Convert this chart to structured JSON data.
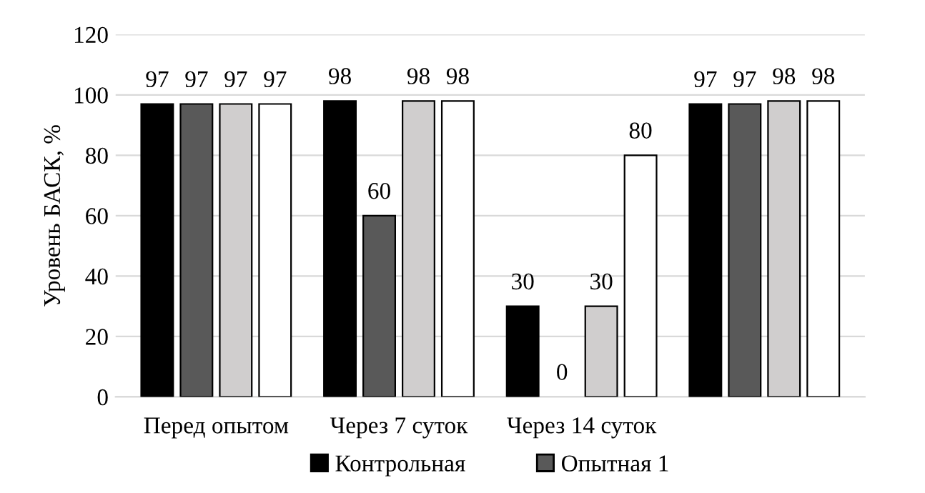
{
  "chart_data": {
    "type": "bar",
    "ylabel": "Уровень БАСК, %",
    "categories": [
      "Перед опытом",
      "Через 7 суток",
      "Через 14 суток",
      null
    ],
    "series": [
      {
        "name": "Контрольная",
        "color": "#000000",
        "values": [
          97,
          98,
          30,
          97
        ]
      },
      {
        "name": "Опытная 1",
        "color": "#595959",
        "values": [
          97,
          60,
          0,
          97
        ]
      },
      {
        "color": "#d0cece",
        "values": [
          97,
          98,
          30,
          98
        ]
      },
      {
        "color": "#ffffff",
        "values": [
          97,
          98,
          80,
          98
        ]
      }
    ],
    "ylim": [
      0,
      120
    ],
    "yticks": [
      0,
      20,
      40,
      60,
      80,
      100,
      120
    ],
    "grid": "y",
    "legend": "bottom",
    "data_labels": true
  }
}
